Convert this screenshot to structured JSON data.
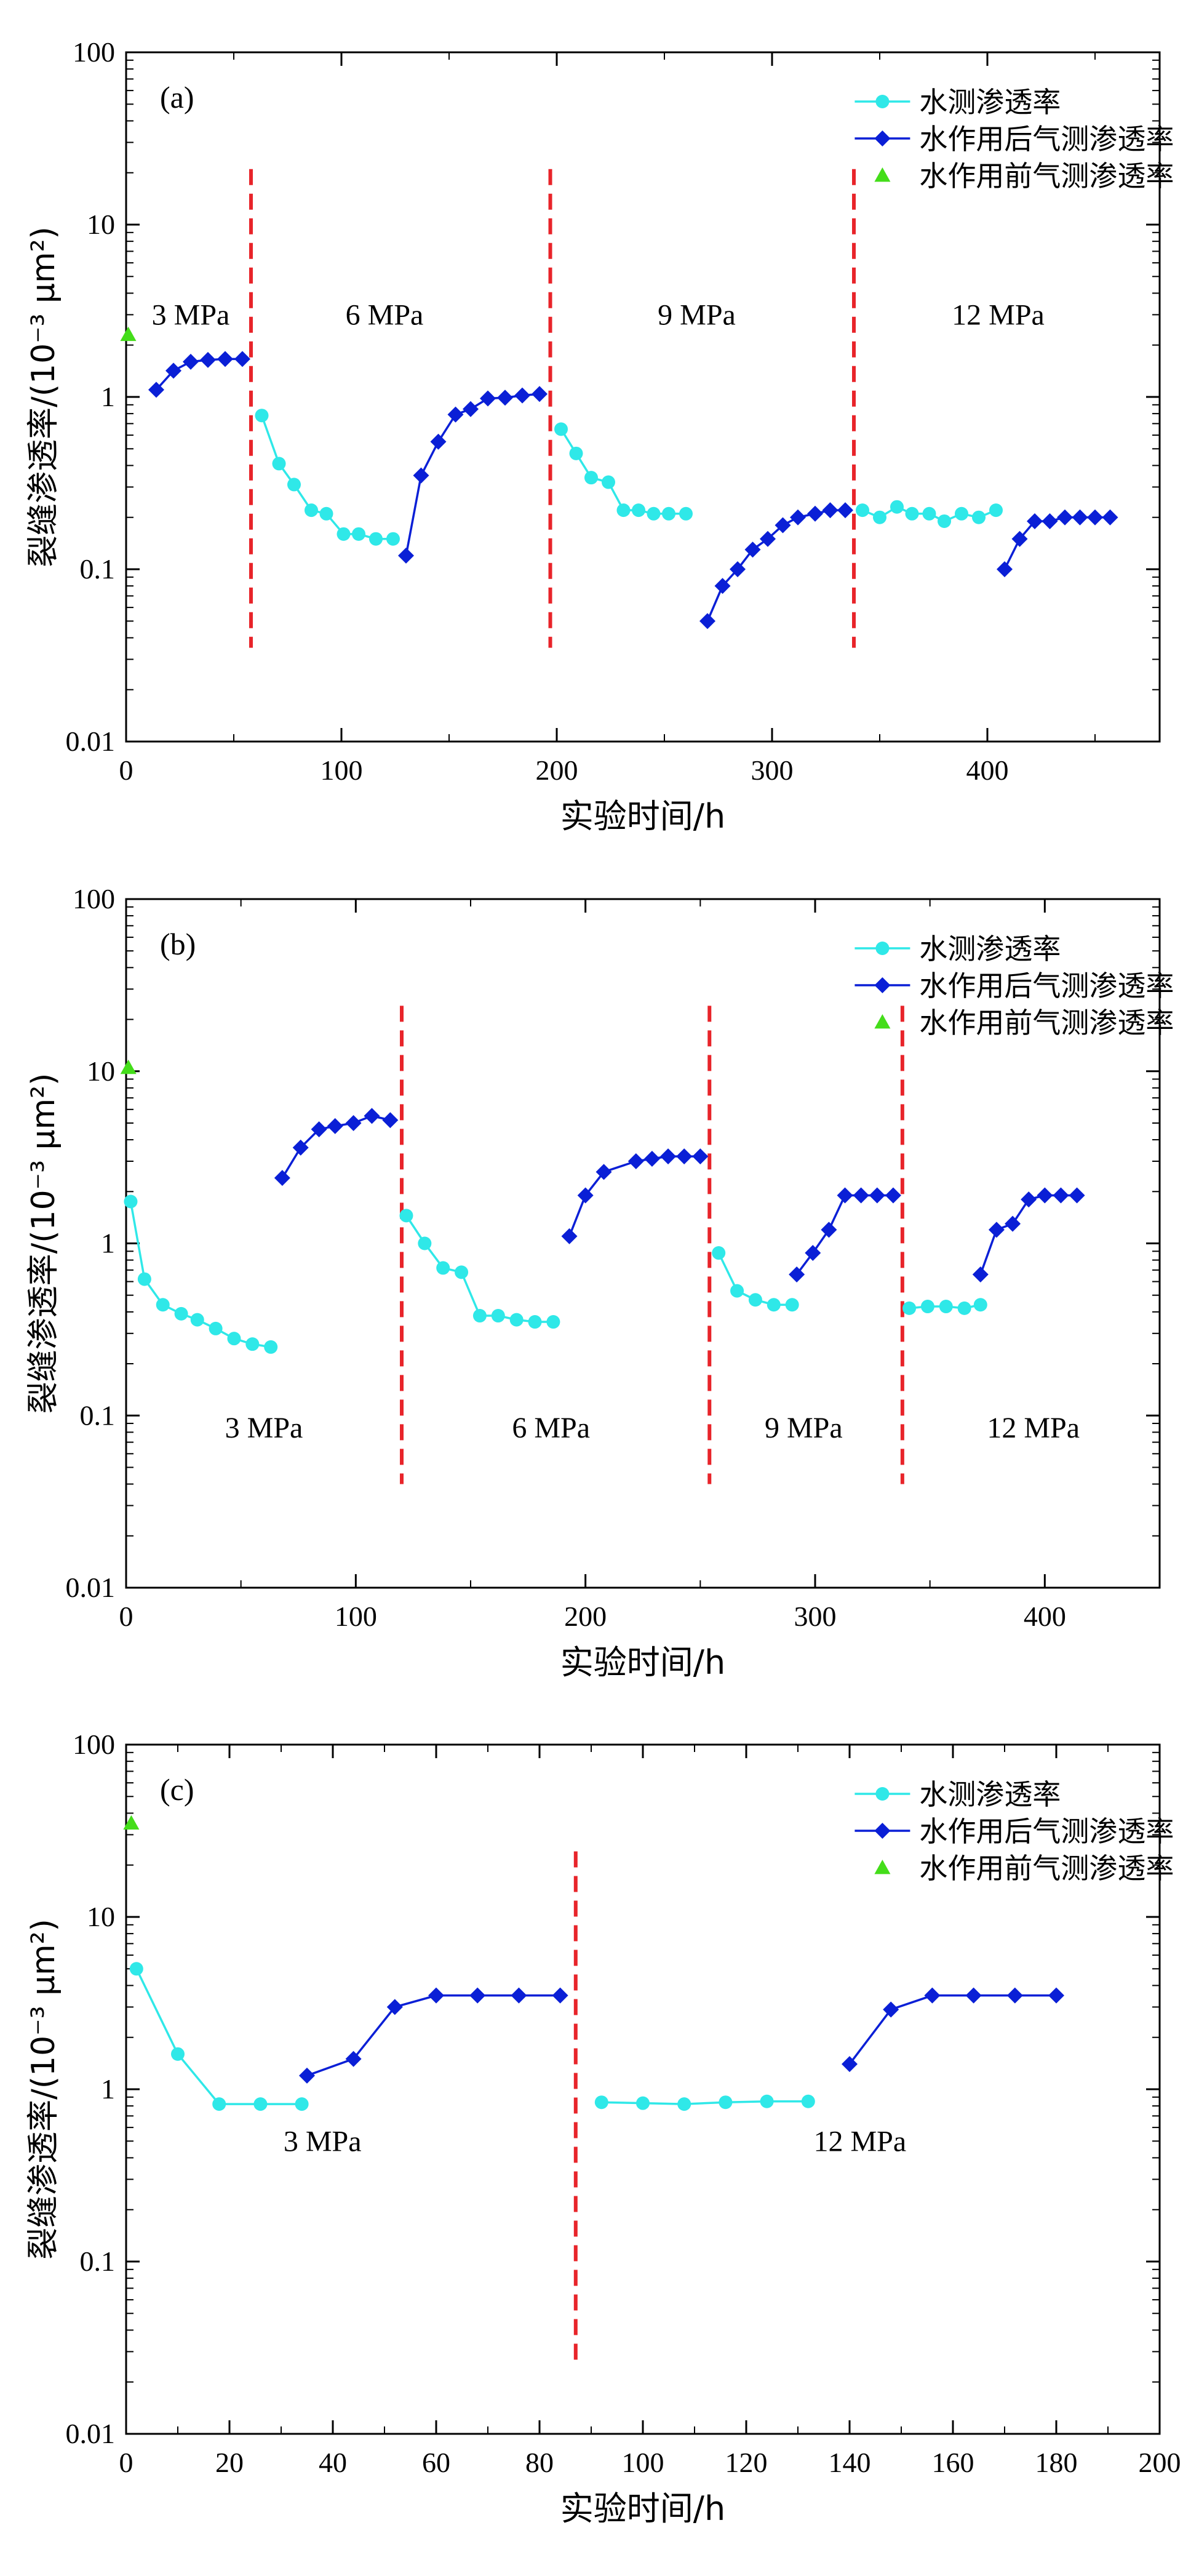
{
  "legend_labels": {
    "water": "水测渗透率",
    "gas_after": "水作用后气测渗透率",
    "gas_before": "水作用前气测渗透率"
  },
  "colors": {
    "water": "#2fe8e8",
    "gas_after": "#0a1fd6",
    "gas_before": "#44dd1a",
    "divider": "#e8242a",
    "axis": "#000000"
  },
  "chart_data": [
    {
      "type": "line",
      "panel_label": "(a)",
      "xlabel": "实验时间/h",
      "ylabel": "裂缝渗透率/(10⁻³ μm²)",
      "x_scale": "linear",
      "y_scale": "log",
      "xlim": [
        0,
        480
      ],
      "ylim": [
        0.01,
        100
      ],
      "x_ticks": [
        0,
        100,
        200,
        300,
        400
      ],
      "y_ticks": [
        0.01,
        0.1,
        1,
        10,
        100
      ],
      "y_tick_labels": [
        "0.01",
        "0.1",
        "1",
        "10",
        "100"
      ],
      "grid": false,
      "legend_position": "top-right",
      "dividers": [
        {
          "x": 58,
          "y_range": [
            0.035,
            21
          ]
        },
        {
          "x": 197,
          "y_range": [
            0.035,
            21
          ]
        },
        {
          "x": 338,
          "y_range": [
            0.035,
            21
          ]
        }
      ],
      "stage_labels": [
        {
          "text": "3 MPa",
          "x": 30,
          "y": 3.0
        },
        {
          "text": "6 MPa",
          "x": 120,
          "y": 3.0
        },
        {
          "text": "9 MPa",
          "x": 265,
          "y": 3.0
        },
        {
          "text": "12 MPa",
          "x": 405,
          "y": 3.0
        }
      ],
      "series": [
        {
          "key": "gas_before",
          "marker": "triangle",
          "segments": [
            [
              [
                1,
                2.3
              ]
            ]
          ]
        },
        {
          "key": "gas_after",
          "marker": "diamond",
          "segments": [
            [
              [
                14,
                1.1
              ],
              [
                22,
                1.42
              ],
              [
                30,
                1.6
              ],
              [
                38,
                1.64
              ],
              [
                46,
                1.66
              ],
              [
                54,
                1.66
              ]
            ],
            [
              [
                130,
                0.12
              ],
              [
                137,
                0.35
              ],
              [
                145,
                0.55
              ],
              [
                153,
                0.79
              ],
              [
                160,
                0.85
              ],
              [
                168,
                0.98
              ],
              [
                176,
                0.99
              ],
              [
                184,
                1.02
              ],
              [
                192,
                1.04
              ]
            ],
            [
              [
                270,
                0.05
              ],
              [
                277,
                0.08
              ],
              [
                284,
                0.1
              ],
              [
                291,
                0.13
              ],
              [
                298,
                0.15
              ],
              [
                305,
                0.18
              ],
              [
                312,
                0.2
              ],
              [
                320,
                0.21
              ],
              [
                327,
                0.22
              ],
              [
                334,
                0.22
              ]
            ],
            [
              [
                408,
                0.1
              ],
              [
                415,
                0.15
              ],
              [
                422,
                0.19
              ],
              [
                429,
                0.19
              ],
              [
                436,
                0.2
              ],
              [
                443,
                0.2
              ],
              [
                450,
                0.2
              ],
              [
                457,
                0.2
              ]
            ]
          ]
        },
        {
          "key": "water",
          "marker": "circle",
          "segments": [
            [
              [
                63,
                0.78
              ],
              [
                71,
                0.41
              ],
              [
                78,
                0.31
              ],
              [
                86,
                0.22
              ],
              [
                93,
                0.21
              ],
              [
                101,
                0.16
              ],
              [
                108,
                0.16
              ],
              [
                116,
                0.15
              ],
              [
                124,
                0.15
              ]
            ],
            [
              [
                202,
                0.65
              ],
              [
                209,
                0.47
              ],
              [
                216,
                0.34
              ],
              [
                224,
                0.32
              ],
              [
                231,
                0.22
              ],
              [
                238,
                0.22
              ],
              [
                245,
                0.21
              ],
              [
                252,
                0.21
              ],
              [
                260,
                0.21
              ]
            ],
            [
              [
                342,
                0.22
              ],
              [
                350,
                0.2
              ],
              [
                358,
                0.23
              ],
              [
                365,
                0.21
              ],
              [
                373,
                0.21
              ],
              [
                380,
                0.19
              ],
              [
                388,
                0.21
              ],
              [
                396,
                0.2
              ],
              [
                404,
                0.22
              ]
            ]
          ]
        }
      ]
    },
    {
      "type": "line",
      "panel_label": "(b)",
      "xlabel": "实验时间/h",
      "ylabel": "裂缝渗透率/(10⁻³ μm²)",
      "x_scale": "linear",
      "y_scale": "log",
      "xlim": [
        0,
        450
      ],
      "ylim": [
        0.01,
        100
      ],
      "x_ticks": [
        0,
        100,
        200,
        300,
        400
      ],
      "y_ticks": [
        0.01,
        0.1,
        1,
        10,
        100
      ],
      "y_tick_labels": [
        "0.01",
        "0.1",
        "1",
        "10",
        "100"
      ],
      "grid": false,
      "legend_position": "top-right",
      "dividers": [
        {
          "x": 120,
          "y_range": [
            0.04,
            24
          ]
        },
        {
          "x": 254,
          "y_range": [
            0.04,
            24
          ]
        },
        {
          "x": 338,
          "y_range": [
            0.04,
            24
          ]
        }
      ],
      "stage_labels": [
        {
          "text": "3 MPa",
          "x": 60,
          "y": 0.085
        },
        {
          "text": "6 MPa",
          "x": 185,
          "y": 0.085
        },
        {
          "text": "9 MPa",
          "x": 295,
          "y": 0.085
        },
        {
          "text": "12 MPa",
          "x": 395,
          "y": 0.085
        }
      ],
      "series": [
        {
          "key": "gas_before",
          "marker": "triangle",
          "segments": [
            [
              [
                1,
                10.5
              ]
            ]
          ]
        },
        {
          "key": "gas_after",
          "marker": "diamond",
          "segments": [
            [
              [
                68,
                2.4
              ],
              [
                76,
                3.6
              ],
              [
                84,
                4.6
              ],
              [
                91,
                4.8
              ],
              [
                99,
                5.0
              ],
              [
                107,
                5.5
              ],
              [
                115,
                5.2
              ]
            ],
            [
              [
                193,
                1.1
              ],
              [
                200,
                1.9
              ],
              [
                208,
                2.6
              ],
              [
                222,
                3.0
              ],
              [
                229,
                3.1
              ],
              [
                236,
                3.2
              ],
              [
                243,
                3.2
              ],
              [
                250,
                3.2
              ]
            ],
            [
              [
                292,
                0.66
              ],
              [
                299,
                0.88
              ],
              [
                306,
                1.2
              ],
              [
                313,
                1.9
              ],
              [
                320,
                1.9
              ],
              [
                327,
                1.9
              ],
              [
                334,
                1.9
              ]
            ],
            [
              [
                372,
                0.66
              ],
              [
                379,
                1.2
              ],
              [
                386,
                1.3
              ],
              [
                393,
                1.8
              ],
              [
                400,
                1.9
              ],
              [
                407,
                1.9
              ],
              [
                414,
                1.9
              ]
            ]
          ]
        },
        {
          "key": "water",
          "marker": "circle",
          "segments": [
            [
              [
                2,
                1.75
              ],
              [
                8,
                0.62
              ],
              [
                16,
                0.44
              ],
              [
                24,
                0.39
              ],
              [
                31,
                0.36
              ],
              [
                39,
                0.32
              ],
              [
                47,
                0.28
              ],
              [
                55,
                0.26
              ],
              [
                63,
                0.25
              ]
            ],
            [
              [
                122,
                1.45
              ],
              [
                130,
                1.0
              ],
              [
                138,
                0.72
              ],
              [
                146,
                0.68
              ],
              [
                154,
                0.38
              ],
              [
                162,
                0.38
              ],
              [
                170,
                0.36
              ],
              [
                178,
                0.35
              ],
              [
                186,
                0.35
              ]
            ],
            [
              [
                258,
                0.88
              ],
              [
                266,
                0.53
              ],
              [
                274,
                0.47
              ],
              [
                282,
                0.44
              ],
              [
                290,
                0.44
              ]
            ],
            [
              [
                341,
                0.42
              ],
              [
                349,
                0.43
              ],
              [
                357,
                0.43
              ],
              [
                365,
                0.42
              ],
              [
                372,
                0.44
              ]
            ]
          ]
        }
      ]
    },
    {
      "type": "line",
      "panel_label": "(c)",
      "xlabel": "实验时间/h",
      "ylabel": "裂缝渗透率/(10⁻³ μm²)",
      "x_scale": "linear",
      "y_scale": "log",
      "xlim": [
        0,
        200
      ],
      "ylim": [
        0.01,
        100
      ],
      "x_ticks": [
        0,
        20,
        40,
        60,
        80,
        100,
        120,
        140,
        160,
        180,
        200
      ],
      "y_ticks": [
        0.01,
        0.1,
        1,
        10,
        100
      ],
      "y_tick_labels": [
        "0.01",
        "0.1",
        "1",
        "10",
        "100"
      ],
      "grid": false,
      "legend_position": "top-right",
      "dividers": [
        {
          "x": 87,
          "y_range": [
            0.025,
            24
          ]
        }
      ],
      "stage_labels": [
        {
          "text": "3 MPa",
          "x": 38,
          "y": 0.5
        },
        {
          "text": "12 MPa",
          "x": 142,
          "y": 0.5
        }
      ],
      "series": [
        {
          "key": "gas_before",
          "marker": "triangle",
          "segments": [
            [
              [
                1,
                35
              ]
            ]
          ]
        },
        {
          "key": "gas_after",
          "marker": "diamond",
          "segments": [
            [
              [
                35,
                1.2
              ],
              [
                44,
                1.5
              ],
              [
                52,
                3.0
              ],
              [
                60,
                3.5
              ],
              [
                68,
                3.5
              ],
              [
                76,
                3.5
              ],
              [
                84,
                3.5
              ]
            ],
            [
              [
                140,
                1.4
              ],
              [
                148,
                2.9
              ],
              [
                156,
                3.5
              ],
              [
                164,
                3.5
              ],
              [
                172,
                3.5
              ],
              [
                180,
                3.5
              ]
            ]
          ]
        },
        {
          "key": "water",
          "marker": "circle",
          "segments": [
            [
              [
                2,
                5.0
              ],
              [
                10,
                1.6
              ],
              [
                18,
                0.82
              ],
              [
                26,
                0.82
              ],
              [
                34,
                0.82
              ]
            ],
            [
              [
                92,
                0.84
              ],
              [
                100,
                0.83
              ],
              [
                108,
                0.82
              ],
              [
                116,
                0.84
              ],
              [
                124,
                0.85
              ],
              [
                132,
                0.85
              ]
            ]
          ]
        }
      ]
    }
  ]
}
